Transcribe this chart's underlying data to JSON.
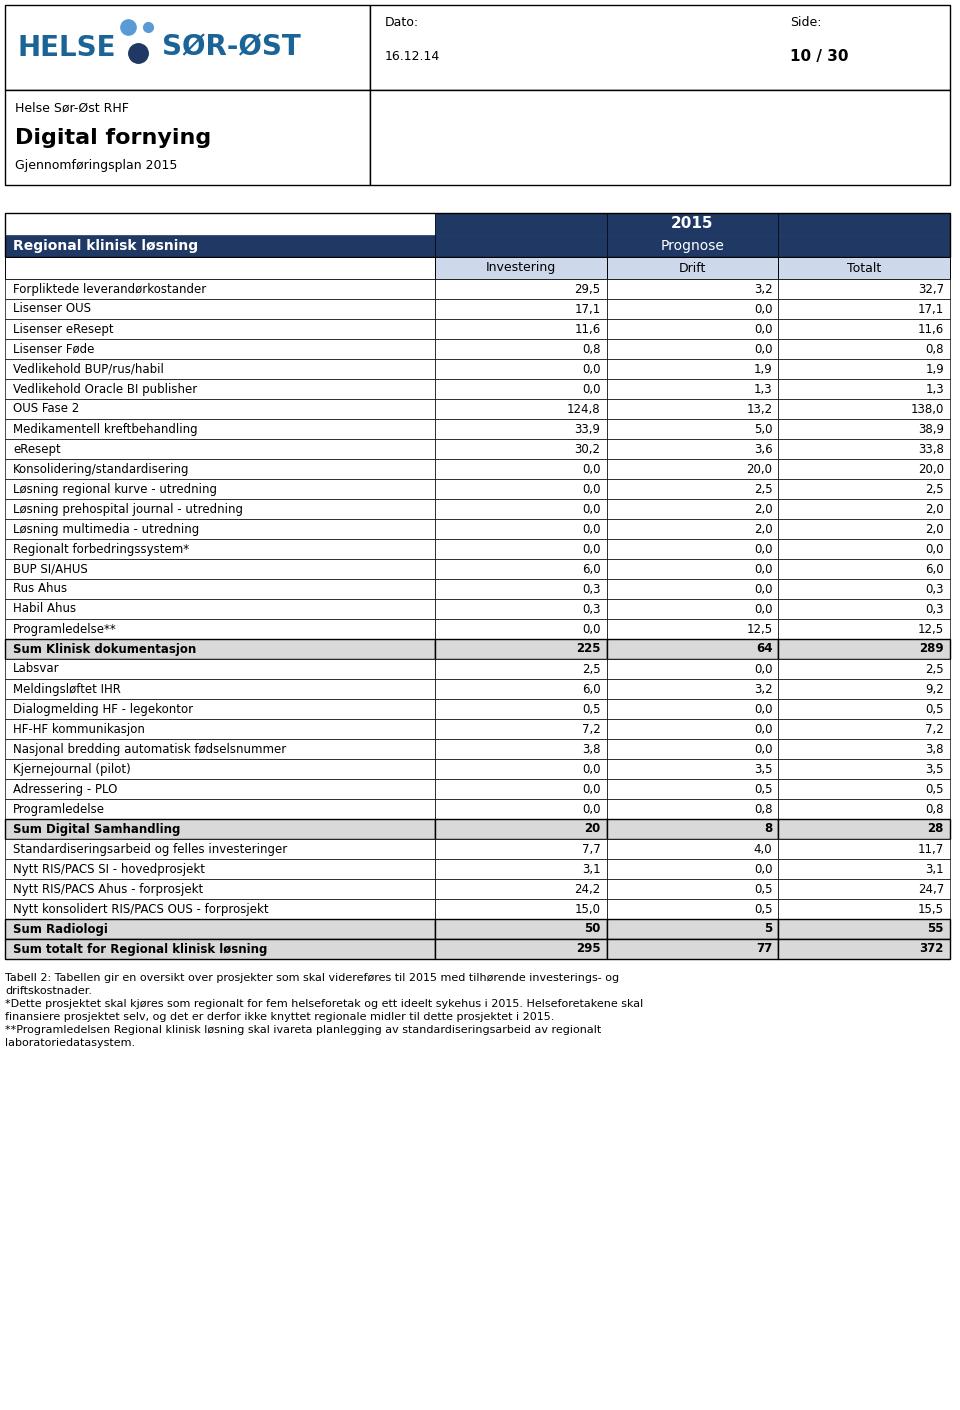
{
  "dato_label": "Dato:",
  "dato_value": "16.12.14",
  "side_label": "Side:",
  "side_value": "10 / 30",
  "org_name": "Helse Sør-Øst RHF",
  "title": "Digital fornying",
  "subtitle": "Gjennomføringsplan 2015",
  "year_header": "2015",
  "sub_header": "Prognose",
  "col_headers": [
    "Investering",
    "Drift",
    "Totalt"
  ],
  "rows": [
    {
      "label": "Forpliktede leverandørkostander",
      "inv": "29,5",
      "drift": "3,2",
      "tot": "32,7",
      "bold": false,
      "shaded": false
    },
    {
      "label": "Lisenser OUS",
      "inv": "17,1",
      "drift": "0,0",
      "tot": "17,1",
      "bold": false,
      "shaded": false
    },
    {
      "label": "Lisenser eResept",
      "inv": "11,6",
      "drift": "0,0",
      "tot": "11,6",
      "bold": false,
      "shaded": false
    },
    {
      "label": "Lisenser Føde",
      "inv": "0,8",
      "drift": "0,0",
      "tot": "0,8",
      "bold": false,
      "shaded": false
    },
    {
      "label": "Vedlikehold BUP/rus/habil",
      "inv": "0,0",
      "drift": "1,9",
      "tot": "1,9",
      "bold": false,
      "shaded": false
    },
    {
      "label": "Vedlikehold Oracle BI publisher",
      "inv": "0,0",
      "drift": "1,3",
      "tot": "1,3",
      "bold": false,
      "shaded": false
    },
    {
      "label": "OUS Fase 2",
      "inv": "124,8",
      "drift": "13,2",
      "tot": "138,0",
      "bold": false,
      "shaded": false
    },
    {
      "label": "Medikamentell kreftbehandling",
      "inv": "33,9",
      "drift": "5,0",
      "tot": "38,9",
      "bold": false,
      "shaded": false
    },
    {
      "label": "eResept",
      "inv": "30,2",
      "drift": "3,6",
      "tot": "33,8",
      "bold": false,
      "shaded": false
    },
    {
      "label": "Konsolidering/standardisering",
      "inv": "0,0",
      "drift": "20,0",
      "tot": "20,0",
      "bold": false,
      "shaded": false
    },
    {
      "label": "Løsning regional kurve - utredning",
      "inv": "0,0",
      "drift": "2,5",
      "tot": "2,5",
      "bold": false,
      "shaded": false
    },
    {
      "label": "Løsning prehospital journal - utredning",
      "inv": "0,0",
      "drift": "2,0",
      "tot": "2,0",
      "bold": false,
      "shaded": false
    },
    {
      "label": "Løsning multimedia - utredning",
      "inv": "0,0",
      "drift": "2,0",
      "tot": "2,0",
      "bold": false,
      "shaded": false
    },
    {
      "label": "Regionalt forbedringssystem*",
      "inv": "0,0",
      "drift": "0,0",
      "tot": "0,0",
      "bold": false,
      "shaded": false
    },
    {
      "label": "BUP SI/AHUS",
      "inv": "6,0",
      "drift": "0,0",
      "tot": "6,0",
      "bold": false,
      "shaded": false
    },
    {
      "label": "Rus Ahus",
      "inv": "0,3",
      "drift": "0,0",
      "tot": "0,3",
      "bold": false,
      "shaded": false
    },
    {
      "label": "Habil Ahus",
      "inv": "0,3",
      "drift": "0,0",
      "tot": "0,3",
      "bold": false,
      "shaded": false
    },
    {
      "label": "Programledelse**",
      "inv": "0,0",
      "drift": "12,5",
      "tot": "12,5",
      "bold": false,
      "shaded": false
    },
    {
      "label": "Sum Klinisk dokumentasjon",
      "inv": "225",
      "drift": "64",
      "tot": "289",
      "bold": true,
      "shaded": true
    },
    {
      "label": "Labsvar",
      "inv": "2,5",
      "drift": "0,0",
      "tot": "2,5",
      "bold": false,
      "shaded": false
    },
    {
      "label": "Meldingsløftet IHR",
      "inv": "6,0",
      "drift": "3,2",
      "tot": "9,2",
      "bold": false,
      "shaded": false
    },
    {
      "label": "Dialogmelding HF - legekontor",
      "inv": "0,5",
      "drift": "0,0",
      "tot": "0,5",
      "bold": false,
      "shaded": false
    },
    {
      "label": "HF-HF kommunikasjon",
      "inv": "7,2",
      "drift": "0,0",
      "tot": "7,2",
      "bold": false,
      "shaded": false
    },
    {
      "label": "Nasjonal bredding automatisk fødselsnummer",
      "inv": "3,8",
      "drift": "0,0",
      "tot": "3,8",
      "bold": false,
      "shaded": false
    },
    {
      "label": "Kjernejournal (pilot)",
      "inv": "0,0",
      "drift": "3,5",
      "tot": "3,5",
      "bold": false,
      "shaded": false
    },
    {
      "label": "Adressering - PLO",
      "inv": "0,0",
      "drift": "0,5",
      "tot": "0,5",
      "bold": false,
      "shaded": false
    },
    {
      "label": "Programledelse",
      "inv": "0,0",
      "drift": "0,8",
      "tot": "0,8",
      "bold": false,
      "shaded": false
    },
    {
      "label": "Sum Digital Samhandling",
      "inv": "20",
      "drift": "8",
      "tot": "28",
      "bold": true,
      "shaded": true
    },
    {
      "label": "Standardiseringsarbeid og felles investeringer",
      "inv": "7,7",
      "drift": "4,0",
      "tot": "11,7",
      "bold": false,
      "shaded": false
    },
    {
      "label": "Nytt RIS/PACS SI - hovedprosjekt",
      "inv": "3,1",
      "drift": "0,0",
      "tot": "3,1",
      "bold": false,
      "shaded": false
    },
    {
      "label": "Nytt RIS/PACS Ahus - forprosjekt",
      "inv": "24,2",
      "drift": "0,5",
      "tot": "24,7",
      "bold": false,
      "shaded": false
    },
    {
      "label": "Nytt konsolidert RIS/PACS OUS - forprosjekt",
      "inv": "15,0",
      "drift": "0,5",
      "tot": "15,5",
      "bold": false,
      "shaded": false
    },
    {
      "label": "Sum Radiologi",
      "inv": "50",
      "drift": "5",
      "tot": "55",
      "bold": true,
      "shaded": true
    },
    {
      "label": "Sum totalt for Regional klinisk løsning",
      "inv": "295",
      "drift": "77",
      "tot": "372",
      "bold": true,
      "shaded": true
    }
  ],
  "footnotes": [
    "Tabell 2: Tabellen gir en oversikt over prosjekter som skal videreføres til 2015 med tilhørende investerings- og",
    "driftskostnader.",
    "*Dette prosjektet skal kjøres som regionalt for fem helseforetak og ett ideelt sykehus i 2015. Helseforetakene skal",
    "finansiere prosjektet selv, og det er derfor ikke knyttet regionale midler til dette prosjektet i 2015.",
    "**Programledelsen Regional klinisk løsning skal ivareta planlegging av standardiseringsarbeid av regionalt",
    "laboratoriedatasystem."
  ],
  "dark_blue": "#1f3864",
  "light_blue_header": "#cdd9ea",
  "shaded_gray": "#d9d9d9",
  "logo_blue": "#1a6496",
  "dot_light": "#5b9bd5",
  "dot_dark": "#1f3864"
}
